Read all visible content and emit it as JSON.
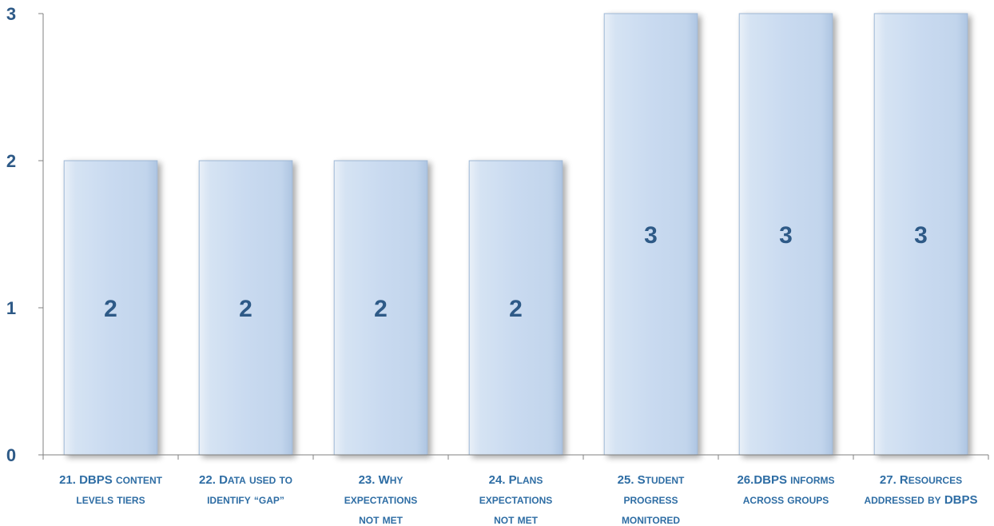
{
  "chart_data": {
    "type": "bar",
    "title": "",
    "xlabel": "",
    "ylabel": "",
    "ylim": [
      0,
      3
    ],
    "yticks": [
      0,
      1,
      2,
      3
    ],
    "grid": false,
    "categories": [
      "21. DBPS content levels tiers",
      "22. Data used to identify “gap”",
      "23. Why expectations not met",
      "24. Plans expectations not met",
      "25. Student progress monitored",
      "26.DBPS informs across groups",
      "27. Resources addressed by DBPS"
    ],
    "category_label_lines": [
      [
        "21.  DBPS content",
        "levels tiers"
      ],
      [
        "22. Data used to",
        "identify “gap”"
      ],
      [
        "23. Why",
        "expectations",
        "not met"
      ],
      [
        "24. Plans",
        "expectations",
        "not met"
      ],
      [
        "25. Student",
        "progress",
        "monitored"
      ],
      [
        "26.DBPS informs",
        "across groups"
      ],
      [
        "27. Resources",
        "addressed by DBPS"
      ]
    ],
    "values": [
      2,
      2,
      2,
      2,
      3,
      3,
      3
    ],
    "data_labels": [
      "2",
      "2",
      "2",
      "2",
      "3",
      "3",
      "3"
    ],
    "colors": {
      "bar_fill": "#c9daf0",
      "bar_stroke": "#9fb8d6",
      "label_text": "#2e5a87",
      "category_text": "#2e6da4",
      "axis": "#808080"
    }
  }
}
